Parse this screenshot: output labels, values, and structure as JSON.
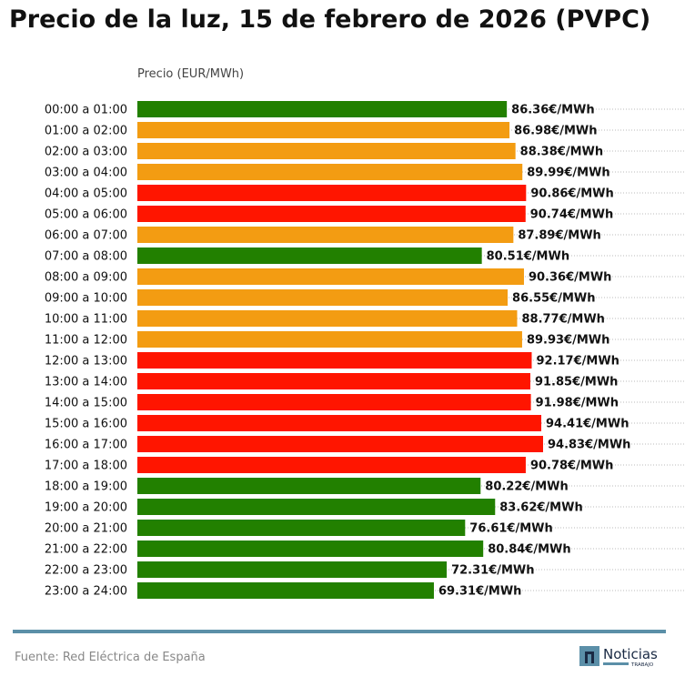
{
  "chart_data": {
    "type": "bar",
    "orientation": "horizontal",
    "title": "Precio de la luz, 15 de febrero de 2026 (PVPC)",
    "xlabel": "Precio (EUR/MWh)",
    "xlim": [
      0,
      128
    ],
    "grid": "dotted horizontal per row",
    "value_suffix": "€/MWh",
    "categories": [
      "00:00 a 01:00",
      "01:00 a 02:00",
      "02:00 a 03:00",
      "03:00 a 04:00",
      "04:00 a 05:00",
      "05:00 a 06:00",
      "06:00 a 07:00",
      "07:00 a 08:00",
      "08:00 a 09:00",
      "09:00 a 10:00",
      "10:00 a 11:00",
      "11:00 a 12:00",
      "12:00 a 13:00",
      "13:00 a 14:00",
      "14:00 a 15:00",
      "15:00 a 16:00",
      "16:00 a 17:00",
      "17:00 a 18:00",
      "18:00 a 19:00",
      "19:00 a 20:00",
      "20:00 a 21:00",
      "21:00 a 22:00",
      "22:00 a 23:00",
      "23:00 a 24:00"
    ],
    "values": [
      86.36,
      86.98,
      88.38,
      89.99,
      90.86,
      90.74,
      87.89,
      80.51,
      90.36,
      86.55,
      88.77,
      89.93,
      92.17,
      91.85,
      91.98,
      94.41,
      94.83,
      90.78,
      80.22,
      83.62,
      76.61,
      80.84,
      72.31,
      69.31
    ],
    "levels": [
      "low",
      "mid",
      "mid",
      "mid",
      "high",
      "high",
      "mid",
      "low",
      "mid",
      "mid",
      "mid",
      "mid",
      "high",
      "high",
      "high",
      "high",
      "high",
      "high",
      "low",
      "low",
      "low",
      "low",
      "low",
      "low"
    ],
    "colors": {
      "low": "#228000",
      "mid": "#f39c12",
      "high": "#ff1500"
    }
  },
  "footer": {
    "source": "Fuente: Red Eléctrica de España",
    "logo_text": "Noticias",
    "logo_subtext": "TRABAJO"
  },
  "colors": {
    "divider": "#5b8fa8"
  }
}
